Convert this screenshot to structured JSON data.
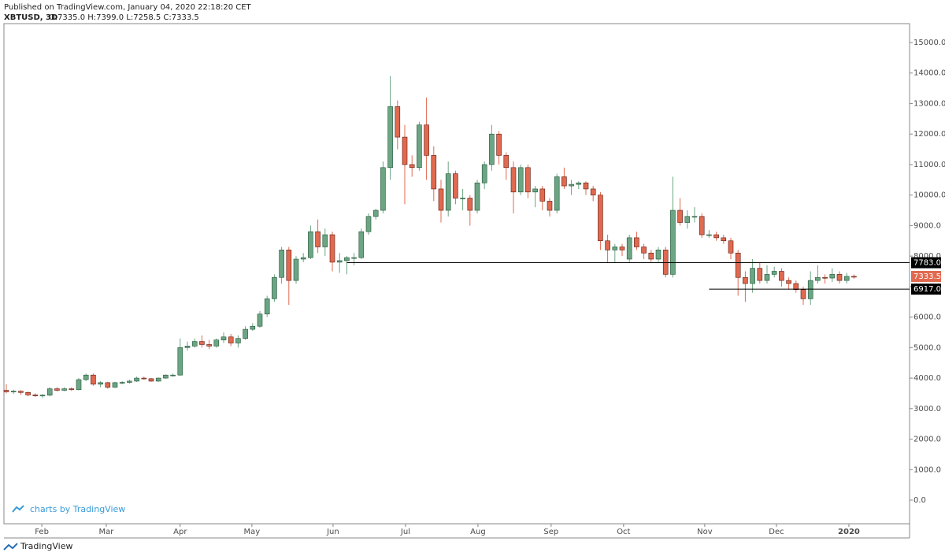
{
  "header": {
    "published": "Published on TradingView.com, January 04, 2020 22:18:20 CET",
    "symbol": "XBTUSD, 3D",
    "ohlc_legend": "O:7335.0 H:7399.0 L:7258.5 C:7333.5"
  },
  "watermark": "charts by TradingView",
  "footer": "TradingView",
  "chart_data": {
    "type": "candlestick",
    "up_color": "#6ba583",
    "down_color": "#e0694f",
    "ylim": [
      -775,
      15620
    ],
    "yticks": [
      {
        "value": 0,
        "label": "0.0"
      },
      {
        "value": 1000,
        "label": "1000.0"
      },
      {
        "value": 2000,
        "label": "2000.0"
      },
      {
        "value": 3000,
        "label": "3000.0"
      },
      {
        "value": 4000,
        "label": "4000.0"
      },
      {
        "value": 5000,
        "label": "5000.0"
      },
      {
        "value": 6000,
        "label": "6000.0"
      },
      {
        "value": 7000,
        "label": "7000.0"
      },
      {
        "value": 8000,
        "label": "8000.0"
      },
      {
        "value": 9000,
        "label": "9000.0"
      },
      {
        "value": 10000,
        "label": "10000.0"
      },
      {
        "value": 11000,
        "label": "11000.0"
      },
      {
        "value": 12000,
        "label": "12000.0"
      },
      {
        "value": 13000,
        "label": "13000.0"
      },
      {
        "value": 14000,
        "label": "14000.0"
      },
      {
        "value": 15000,
        "label": "15000.0"
      }
    ],
    "xticks": [
      {
        "value": 4.9,
        "label": "Feb"
      },
      {
        "value": 13.8,
        "label": "Mar"
      },
      {
        "value": 24.0,
        "label": "Apr"
      },
      {
        "value": 33.9,
        "label": "May"
      },
      {
        "value": 45.1,
        "label": "Jun"
      },
      {
        "value": 55.1,
        "label": "Jul"
      },
      {
        "value": 65.1,
        "label": "Aug"
      },
      {
        "value": 75.2,
        "label": "Sep"
      },
      {
        "value": 85.2,
        "label": "Oct"
      },
      {
        "value": 96.4,
        "label": "Nov"
      },
      {
        "value": 106.3,
        "label": "Dec"
      },
      {
        "value": 116.3,
        "label": "2020"
      }
    ],
    "hlines": [
      {
        "value": 7783.0,
        "label": "7783.0",
        "x0": 47
      },
      {
        "value": 6917.0,
        "label": "6917.0",
        "x0": 97
      }
    ],
    "last_price": {
      "value": 7333.5,
      "label": "7333.5"
    },
    "ohlc": [
      [
        3600,
        3800,
        3500,
        3550
      ],
      [
        3550,
        3620,
        3480,
        3570
      ],
      [
        3570,
        3600,
        3450,
        3530
      ],
      [
        3530,
        3560,
        3400,
        3450
      ],
      [
        3450,
        3500,
        3380,
        3420
      ],
      [
        3420,
        3480,
        3350,
        3440
      ],
      [
        3440,
        3700,
        3400,
        3650
      ],
      [
        3650,
        3700,
        3560,
        3600
      ],
      [
        3600,
        3700,
        3570,
        3650
      ],
      [
        3650,
        3700,
        3580,
        3620
      ],
      [
        3620,
        4000,
        3600,
        3950
      ],
      [
        3950,
        4150,
        3900,
        4100
      ],
      [
        4100,
        4150,
        3750,
        3800
      ],
      [
        3800,
        3900,
        3700,
        3850
      ],
      [
        3850,
        3880,
        3650,
        3700
      ],
      [
        3700,
        3880,
        3680,
        3850
      ],
      [
        3850,
        3900,
        3800,
        3860
      ],
      [
        3860,
        3950,
        3820,
        3900
      ],
      [
        3900,
        4050,
        3870,
        4000
      ],
      [
        4000,
        4050,
        3950,
        3980
      ],
      [
        3980,
        4000,
        3880,
        3900
      ],
      [
        3900,
        4020,
        3880,
        4000
      ],
      [
        4000,
        4120,
        3980,
        4100
      ],
      [
        4080,
        4150,
        4050,
        4100
      ],
      [
        4100,
        5300,
        4080,
        5000
      ],
      [
        5000,
        5200,
        4900,
        5050
      ],
      [
        5050,
        5300,
        5000,
        5200
      ],
      [
        5200,
        5400,
        5000,
        5100
      ],
      [
        5100,
        5250,
        4950,
        5050
      ],
      [
        5050,
        5300,
        5000,
        5250
      ],
      [
        5250,
        5500,
        5150,
        5350
      ],
      [
        5350,
        5450,
        5050,
        5150
      ],
      [
        5150,
        5400,
        5000,
        5300
      ],
      [
        5300,
        5700,
        5250,
        5600
      ],
      [
        5600,
        5800,
        5550,
        5700
      ],
      [
        5700,
        6200,
        5650,
        6100
      ],
      [
        6100,
        6700,
        6000,
        6600
      ],
      [
        6600,
        7400,
        6500,
        7300
      ],
      [
        7300,
        8300,
        7100,
        8200
      ],
      [
        8200,
        8300,
        6400,
        7200
      ],
      [
        7200,
        8000,
        7100,
        7900
      ],
      [
        7900,
        8100,
        7800,
        7950
      ],
      [
        7950,
        9000,
        7900,
        8800
      ],
      [
        8800,
        9200,
        8100,
        8300
      ],
      [
        8300,
        8900,
        8000,
        8700
      ],
      [
        8700,
        8800,
        7500,
        7800
      ],
      [
        7800,
        8100,
        7450,
        7850
      ],
      [
        7850,
        8000,
        7400,
        7950
      ],
      [
        7950,
        8100,
        7700,
        7950
      ],
      [
        7950,
        8900,
        7900,
        8800
      ],
      [
        8800,
        9400,
        8700,
        9300
      ],
      [
        9300,
        9550,
        9200,
        9500
      ],
      [
        9500,
        11100,
        9400,
        10900
      ],
      [
        10900,
        13900,
        10500,
        12900
      ],
      [
        12900,
        13100,
        11500,
        11900
      ],
      [
        11900,
        12300,
        9700,
        11000
      ],
      [
        11000,
        11300,
        10600,
        10900
      ],
      [
        10900,
        12400,
        10800,
        12300
      ],
      [
        12300,
        13200,
        10500,
        11300
      ],
      [
        11300,
        11600,
        9800,
        10200
      ],
      [
        10200,
        10500,
        9100,
        9500
      ],
      [
        9500,
        11100,
        9300,
        10700
      ],
      [
        10700,
        10800,
        9700,
        9900
      ],
      [
        9900,
        10200,
        9500,
        9900
      ],
      [
        9900,
        10000,
        9000,
        9500
      ],
      [
        9500,
        10500,
        9400,
        10400
      ],
      [
        10400,
        11100,
        10200,
        11000
      ],
      [
        11000,
        12300,
        10800,
        12000
      ],
      [
        12000,
        12100,
        11000,
        11300
      ],
      [
        11300,
        11400,
        10500,
        10900
      ],
      [
        10900,
        11100,
        9400,
        10100
      ],
      [
        10100,
        11000,
        10000,
        10900
      ],
      [
        10900,
        11000,
        9900,
        10100
      ],
      [
        10100,
        10300,
        9600,
        10200
      ],
      [
        10200,
        10300,
        9500,
        9800
      ],
      [
        9800,
        9900,
        9300,
        9500
      ],
      [
        9500,
        10700,
        9400,
        10600
      ],
      [
        10600,
        10900,
        10200,
        10300
      ],
      [
        10300,
        10500,
        10000,
        10350
      ],
      [
        10350,
        10450,
        10200,
        10400
      ],
      [
        10400,
        10450,
        10000,
        10200
      ],
      [
        10200,
        10300,
        9800,
        10000
      ],
      [
        10000,
        10100,
        8200,
        8500
      ],
      [
        8500,
        8700,
        7800,
        8200
      ],
      [
        8200,
        8400,
        7800,
        8300
      ],
      [
        8300,
        8400,
        8000,
        8200
      ],
      [
        7900,
        8700,
        7800,
        8600
      ],
      [
        8600,
        8800,
        8200,
        8300
      ],
      [
        8300,
        8400,
        7900,
        8100
      ],
      [
        8100,
        8200,
        7800,
        7900
      ],
      [
        7900,
        8300,
        7800,
        8200
      ],
      [
        8200,
        8300,
        7300,
        7400
      ],
      [
        7400,
        10600,
        7300,
        9500
      ],
      [
        9500,
        9900,
        9000,
        9100
      ],
      [
        9100,
        9500,
        8900,
        9300
      ],
      [
        9300,
        9600,
        9100,
        9300
      ],
      [
        9300,
        9400,
        8600,
        8700
      ],
      [
        8700,
        8850,
        8600,
        8700
      ],
      [
        8700,
        8800,
        8500,
        8600
      ],
      [
        8600,
        8700,
        8400,
        8500
      ],
      [
        8500,
        8600,
        7900,
        8100
      ],
      [
        8100,
        8200,
        6700,
        7300
      ],
      [
        7300,
        7500,
        6500,
        7100
      ],
      [
        7100,
        7900,
        6800,
        7600
      ],
      [
        7600,
        7800,
        7100,
        7200
      ],
      [
        7200,
        7700,
        7100,
        7400
      ],
      [
        7400,
        7650,
        7300,
        7500
      ],
      [
        7500,
        7600,
        7000,
        7200
      ],
      [
        7200,
        7300,
        6900,
        7100
      ],
      [
        7100,
        7200,
        6800,
        6900
      ],
      [
        6900,
        7000,
        6400,
        6600
      ],
      [
        6600,
        7500,
        6400,
        7200
      ],
      [
        7200,
        7700,
        7100,
        7300
      ],
      [
        7300,
        7400,
        7100,
        7280
      ],
      [
        7280,
        7600,
        7150,
        7400
      ],
      [
        7400,
        7500,
        7100,
        7200
      ],
      [
        7200,
        7450,
        7100,
        7335
      ],
      [
        7335,
        7399,
        7258.5,
        7333.5
      ]
    ]
  }
}
